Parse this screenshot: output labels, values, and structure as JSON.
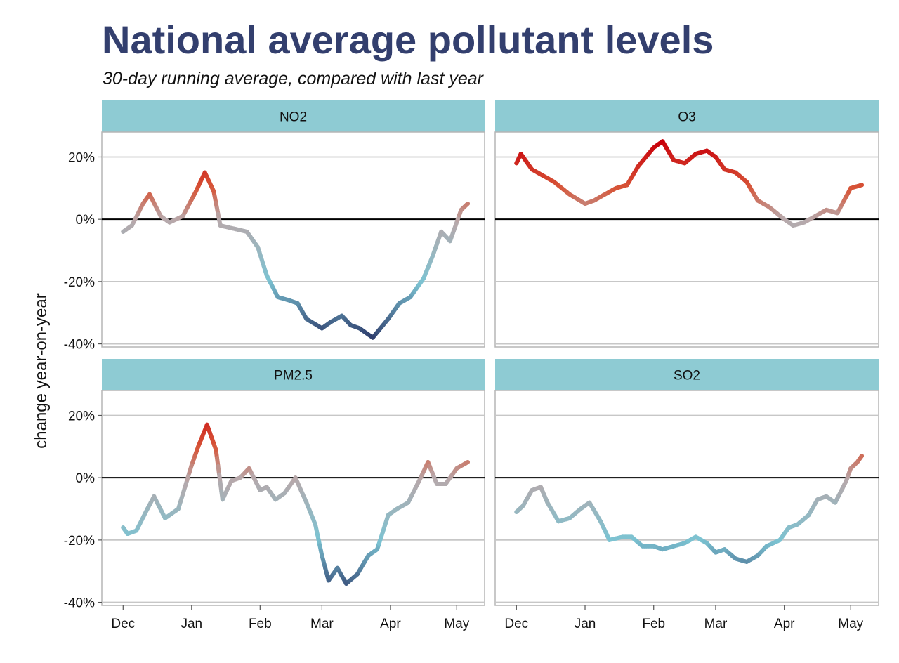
{
  "title": "National average pollutant levels",
  "subtitle": "30-day running average, compared with last year",
  "chart_data": {
    "type": "line",
    "ylabel": "change year-on-year",
    "xlabel": "",
    "x_ticks": [
      "Dec",
      "Jan",
      "Feb",
      "Mar",
      "Apr",
      "May"
    ],
    "y_ticks": [
      "20%",
      "0%",
      "-20%",
      "-40%"
    ],
    "y_tick_values": [
      20,
      0,
      -20,
      -40
    ],
    "ylim": [
      -41,
      28
    ],
    "x_range_months": [
      "Nov 29",
      "May 6"
    ],
    "grid": true,
    "zero_line": true,
    "color_scale": {
      "low": "#2f3f6e",
      "mid_low": "#7cc3d2",
      "mid": "#b8a8aa",
      "mid_high": "#d75538",
      "high": "#c8000a",
      "min_value": -38,
      "max_value": 25
    },
    "strip_color": "#8ecbd3",
    "panels": [
      {
        "name": "NO2",
        "x": [
          "Dec",
          "Dec 5",
          "Dec 10",
          "Dec 13",
          "Dec 18",
          "Dec 22",
          "Dec 28",
          "Jan 3",
          "Jan 7",
          "Jan 11",
          "Jan 14",
          "Jan 20",
          "Jan 26",
          "Jan 31",
          "Feb 4",
          "Feb 9",
          "Feb 14",
          "Feb 18",
          "Feb 22",
          "Mar",
          "Mar 5",
          "Mar 10",
          "Mar 14",
          "Mar 18",
          "Mar 24",
          "Mar 31",
          "Apr 5",
          "Apr 10",
          "Apr 16",
          "Apr 20",
          "Apr 24",
          "Apr 28",
          "May 3",
          "May 6"
        ],
        "values": [
          -4,
          -2,
          5,
          8,
          1,
          -1,
          1,
          9,
          15,
          9,
          -2,
          -3,
          -4,
          -9,
          -18,
          -25,
          -26,
          -27,
          -32,
          -35,
          -33,
          -31,
          -34,
          -35,
          -38,
          -32,
          -27,
          -25,
          -19,
          -12,
          -4,
          -7,
          3,
          5
        ]
      },
      {
        "name": "O3",
        "x": [
          "Dec",
          "Dec 3",
          "Dec 8",
          "Dec 13",
          "Dec 18",
          "Dec 25",
          "Jan",
          "Jan 5",
          "Jan 10",
          "Jan 15",
          "Jan 20",
          "Jan 25",
          "Feb",
          "Feb 5",
          "Feb 10",
          "Feb 15",
          "Feb 20",
          "Feb 25",
          "Mar",
          "Mar 5",
          "Mar 10",
          "Mar 15",
          "Mar 20",
          "Mar 25",
          "Apr",
          "Apr 5",
          "Apr 10",
          "Apr 15",
          "Apr 20",
          "Apr 25",
          "May",
          "May 6"
        ],
        "values": [
          18,
          21,
          16,
          14,
          12,
          8,
          5,
          6,
          8,
          10,
          11,
          17,
          23,
          25,
          19,
          18,
          21,
          22,
          20,
          16,
          15,
          12,
          6,
          4,
          0,
          -2,
          -1,
          1,
          3,
          2,
          10,
          11
        ]
      },
      {
        "name": "PM2.5",
        "x": [
          "Dec",
          "Dec 3",
          "Dec 7",
          "Dec 12",
          "Dec 15",
          "Dec 20",
          "Dec 26",
          "Jan",
          "Jan 4",
          "Jan 8",
          "Jan 12",
          "Jan 15",
          "Jan 19",
          "Jan 23",
          "Jan 27",
          "Feb",
          "Feb 4",
          "Feb 8",
          "Feb 12",
          "Feb 17",
          "Feb 22",
          "Feb 26",
          "Mar",
          "Mar 4",
          "Mar 8",
          "Mar 12",
          "Mar 17",
          "Mar 22",
          "Mar 26",
          "Mar 31",
          "Apr 4",
          "Apr 9",
          "Apr 14",
          "Apr 18",
          "Apr 22",
          "Apr 26",
          "May",
          "May 6"
        ],
        "values": [
          -16,
          -18,
          -17,
          -10,
          -6,
          -13,
          -10,
          4,
          10,
          17,
          9,
          -7,
          -1,
          0,
          3,
          -4,
          -3,
          -7,
          -5,
          0,
          -8,
          -15,
          -25,
          -33,
          -29,
          -34,
          -31,
          -25,
          -23,
          -12,
          -10,
          -8,
          -1,
          5,
          -2,
          -2,
          3,
          5
        ]
      },
      {
        "name": "SO2",
        "x": [
          "Dec",
          "Dec 4",
          "Dec 8",
          "Dec 12",
          "Dec 15",
          "Dec 20",
          "Dec 25",
          "Dec 30",
          "Jan 3",
          "Jan 8",
          "Jan 12",
          "Jan 18",
          "Jan 22",
          "Jan 27",
          "Feb",
          "Feb 5",
          "Feb 10",
          "Feb 15",
          "Feb 20",
          "Feb 25",
          "Mar",
          "Mar 5",
          "Mar 10",
          "Mar 15",
          "Mar 20",
          "Mar 24",
          "Mar 30",
          "Apr 3",
          "Apr 7",
          "Apr 12",
          "Apr 16",
          "Apr 20",
          "Apr 24",
          "Apr 29",
          "May",
          "May 4",
          "May 6"
        ],
        "values": [
          -11,
          -9,
          -4,
          -3,
          -8,
          -14,
          -13,
          -10,
          -8,
          -14,
          -20,
          -19,
          -19,
          -22,
          -22,
          -23,
          -22,
          -21,
          -19,
          -21,
          -24,
          -23,
          -26,
          -27,
          -25,
          -22,
          -20,
          -16,
          -15,
          -12,
          -7,
          -6,
          -8,
          -1,
          3,
          5,
          7
        ]
      }
    ]
  }
}
